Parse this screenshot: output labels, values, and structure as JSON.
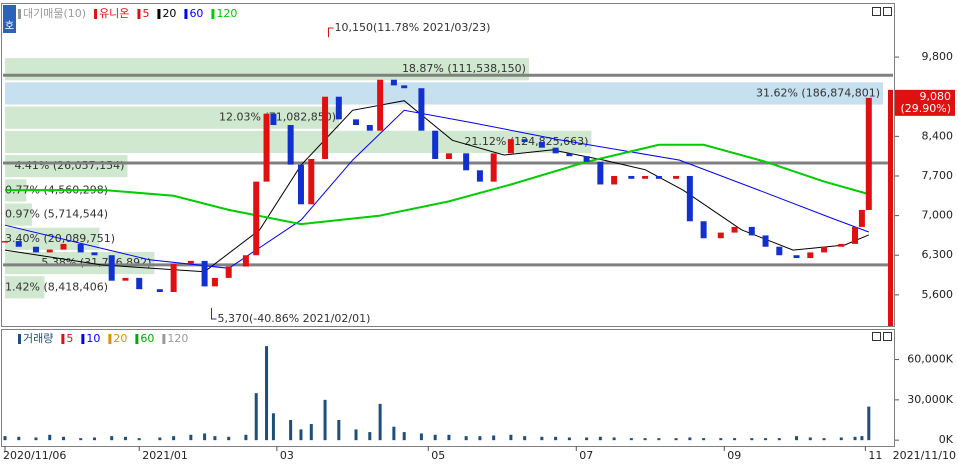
{
  "chart_data": [
    {
      "type": "candlestick",
      "legend": [
        {
          "label": "대기매물(10)",
          "color": "#9a9a9a"
        },
        {
          "label": "유니온",
          "color": "#e01010"
        },
        {
          "label": "5",
          "color": "#e01010"
        },
        {
          "label": "20",
          "color": "#000000"
        },
        {
          "label": "60",
          "color": "#0000ff"
        },
        {
          "label": "120",
          "color": "#00cc00"
        }
      ],
      "x": [
        0,
        4,
        9,
        13,
        17,
        22,
        26,
        31,
        35,
        39,
        45,
        49,
        54,
        58,
        61,
        65,
        70,
        73,
        76,
        78,
        83,
        86,
        89,
        93,
        97,
        102,
        106,
        109,
        113,
        116,
        121,
        125,
        129,
        134,
        138,
        142,
        147,
        151,
        156,
        160,
        164,
        169,
        173,
        177,
        182,
        186,
        190,
        195,
        199,
        203,
        208,
        212,
        217,
        221,
        225,
        230,
        234,
        238,
        243,
        247,
        249,
        251
      ],
      "values": [
        6550,
        6450,
        6350,
        6400,
        6500,
        6350,
        6300,
        5850,
        5900,
        5700,
        5650,
        6150,
        6200,
        5750,
        5900,
        6100,
        6300,
        7600,
        8800,
        8600,
        7900,
        7200,
        8000,
        9100,
        8700,
        8600,
        8500,
        9400,
        9300,
        9250,
        8500,
        8000,
        8100,
        7800,
        7600,
        8100,
        8350,
        8300,
        8200,
        8100,
        8050,
        7950,
        7550,
        7700,
        7650,
        7700,
        7650,
        7700,
        6900,
        6600,
        6700,
        6800,
        6650,
        6450,
        6300,
        6250,
        6350,
        6450,
        6500,
        6800,
        7100,
        9080
      ],
      "up_color": "#e01010",
      "down_color": "#1030d0",
      "series": [
        {
          "color": "#000000",
          "x": [
            0,
            28,
            58,
            74,
            86,
            101,
            116,
            130,
            145,
            159,
            174,
            186,
            197,
            214,
            229,
            244,
            251
          ],
          "values": [
            6390,
            6130,
            6010,
            6750,
            7890,
            8860,
            9030,
            8330,
            8070,
            8160,
            7980,
            7810,
            7450,
            6750,
            6390,
            6480,
            6660
          ]
        },
        {
          "color": "#0000ff",
          "x": [
            0,
            42,
            65,
            86,
            101,
            116,
            135,
            161,
            196,
            219,
            240,
            251
          ],
          "values": [
            6830,
            6220,
            6070,
            6920,
            7980,
            8860,
            8650,
            8340,
            7980,
            7450,
            6960,
            6710
          ]
        },
        {
          "color": "#00cc00",
          "x": [
            0,
            29,
            49,
            65,
            86,
            109,
            129,
            147,
            169,
            190,
            203,
            221,
            238,
            251
          ],
          "values": [
            7450,
            7450,
            7350,
            7100,
            6850,
            7000,
            7250,
            7550,
            7950,
            8250,
            8250,
            7950,
            7600,
            7380
          ]
        }
      ],
      "profile": {
        "bins": [
          5520,
          5948,
          6376,
          6804,
          7232,
          7660,
          8088,
          8516,
          8944,
          9372,
          9800
        ],
        "values": [
          1.42,
          5.38,
          3.4,
          0.97,
          0.77,
          4.41,
          21.12,
          12.03,
          31.62,
          18.87
        ],
        "value_labels": [
          "1.42% (8,418,406)",
          "5.38% (31,776,892)",
          "3.40% (20,089,751)",
          "0.97% (5,714,544)",
          "0.77% (4,560,298)",
          "4.41% (26,057,154)",
          "21.12% (124,825,663)",
          "12.03% (71,082,850)",
          "31.62% (186,874,801)",
          "18.87% (111,538,150)"
        ],
        "color": "#cfe8cf",
        "max_color": "#c6e0f0"
      },
      "levels": [
        9480,
        7930,
        6130
      ],
      "annotations": [
        {
          "label": "10,150(11.78% 2021/03/23)",
          "x": 94,
          "value": 10150,
          "color": "#e01010"
        },
        {
          "label": "5,370(-40.86% 2021/02/01)",
          "x": 60,
          "value": 5370,
          "color": "#1030d0"
        }
      ],
      "last_price": {
        "value": 9080,
        "label": "9,080",
        "change": "(29.90%)",
        "color": "#e01010"
      },
      "xlim": [
        0,
        256
      ],
      "ylim": [
        5050,
        10720
      ],
      "yticks": [
        {
          "value": 5600,
          "label": "5,600"
        },
        {
          "value": 6300,
          "label": "6,300"
        },
        {
          "value": 7000,
          "label": "7,000"
        },
        {
          "value": 7700,
          "label": "7,700"
        },
        {
          "value": 8400,
          "label": "8,400"
        },
        {
          "value": 9800,
          "label": "9,800"
        }
      ]
    },
    {
      "type": "bar",
      "legend": [
        {
          "label": "거래량",
          "color": "#1d4f7a"
        },
        {
          "label": "5",
          "color": "#e01010"
        },
        {
          "label": "10",
          "color": "#0000ff"
        },
        {
          "label": "20",
          "color": "#e09000"
        },
        {
          "label": "60",
          "color": "#00aa00"
        },
        {
          "label": "120",
          "color": "#9a9a9a"
        }
      ],
      "x": [
        0,
        4,
        9,
        13,
        17,
        22,
        26,
        31,
        35,
        39,
        45,
        49,
        54,
        58,
        61,
        65,
        70,
        73,
        76,
        78,
        83,
        86,
        89,
        93,
        97,
        102,
        106,
        109,
        113,
        116,
        121,
        125,
        129,
        134,
        138,
        142,
        147,
        151,
        156,
        160,
        164,
        169,
        173,
        177,
        182,
        186,
        190,
        195,
        199,
        203,
        208,
        212,
        217,
        221,
        225,
        230,
        234,
        238,
        243,
        247,
        249,
        251
      ],
      "values": [
        3000,
        2500,
        2000,
        4000,
        2500,
        1500,
        2000,
        3000,
        2500,
        1500,
        2000,
        3000,
        4000,
        5000,
        3000,
        2500,
        4000,
        35000,
        70000,
        20000,
        15000,
        8000,
        12000,
        30000,
        15000,
        8000,
        6000,
        27000,
        10000,
        6000,
        5000,
        4000,
        4000,
        3000,
        3000,
        3500,
        4000,
        3000,
        2500,
        2500,
        2000,
        2000,
        2500,
        2000,
        1500,
        1500,
        1500,
        1500,
        2000,
        1500,
        1500,
        1500,
        1500,
        1500,
        1500,
        3000,
        2000,
        1500,
        2000,
        2500,
        3000,
        25000
      ],
      "color": "#1d4f7a",
      "xlim": [
        0,
        256
      ],
      "xticks": [
        {
          "value": 0,
          "label": "2020/11/06"
        },
        {
          "value": 39,
          "label": "2021/01"
        },
        {
          "value": 79,
          "label": "03"
        },
        {
          "value": 123,
          "label": "05"
        },
        {
          "value": 166,
          "label": "07"
        },
        {
          "value": 209,
          "label": "09"
        },
        {
          "value": 250,
          "label": "11"
        },
        {
          "value": 256,
          "label": "2021/11/10"
        }
      ],
      "ylim": [
        -3600,
        82000
      ],
      "yticks": [
        {
          "value": 0,
          "label": "0K"
        },
        {
          "value": 30000,
          "label": "30,000K"
        },
        {
          "value": 60000,
          "label": "60,000K"
        }
      ]
    }
  ]
}
